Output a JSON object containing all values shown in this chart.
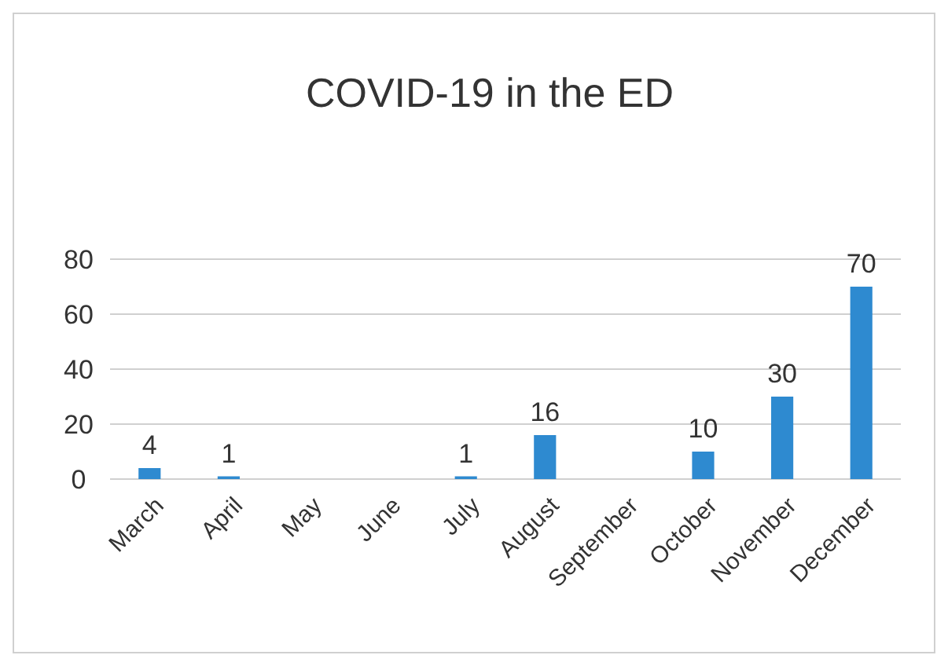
{
  "chart_data": {
    "type": "bar",
    "title": "COVID-19 in the ED",
    "categories": [
      "March",
      "April",
      "May",
      "June",
      "July",
      "August",
      "September",
      "October",
      "November",
      "December"
    ],
    "values": [
      4,
      1,
      0,
      0,
      1,
      16,
      0,
      10,
      30,
      70
    ],
    "value_labels": [
      "4",
      "1",
      null,
      null,
      "1",
      "16",
      null,
      "10",
      "30",
      "70"
    ],
    "color": "#2e8ad0",
    "ylim": [
      0,
      80
    ],
    "yticks": [
      0,
      20,
      40,
      60,
      80
    ],
    "grid": "y"
  }
}
